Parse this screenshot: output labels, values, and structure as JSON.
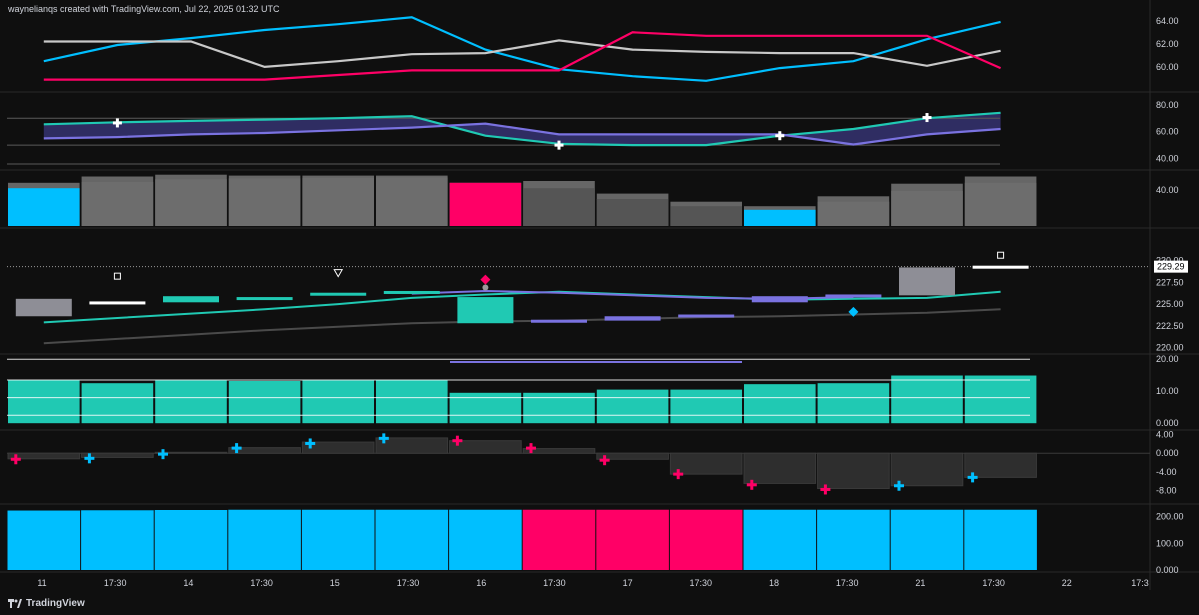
{
  "header": {
    "text": "waynelianqs created with TradingView.com, Jul 22, 2025 01:32 UTC"
  },
  "brand": {
    "text": "TradingView",
    "logo_icon": "tradingview-logo-icon"
  },
  "colors": {
    "cyan": "#00bfff",
    "magenta": "#ff0066",
    "teal": "#20c9b3",
    "purple": "#7a72e0",
    "grey": "#c8c8c8",
    "bar_grey": "#6d6d6d",
    "bg": "#0f0f0f"
  },
  "x_axis": {
    "labels": [
      "11",
      "17:30",
      "14",
      "17:30",
      "15",
      "17:30",
      "16",
      "17:30",
      "17",
      "17:30",
      "18",
      "17:30",
      "21",
      "17:30",
      "22",
      "17:3"
    ]
  },
  "chart_data": [
    {
      "type": "line",
      "panel": 1,
      "x": [
        0,
        1,
        2,
        3,
        4,
        5,
        6,
        7,
        8,
        9,
        10,
        11,
        12,
        13
      ],
      "ylim": [
        58,
        64.5
      ],
      "yticks": [
        "64.00",
        "62.00",
        "60.00"
      ],
      "series": [
        {
          "color": "#00bfff",
          "values": [
            60.5,
            61.9,
            62.5,
            63.2,
            63.7,
            64.3,
            61.5,
            59.8,
            59.2,
            58.8,
            59.9,
            60.5,
            62.4,
            63.9
          ]
        },
        {
          "color": "#c8c8c8",
          "values": [
            62.2,
            62.2,
            62.2,
            60.0,
            60.5,
            61.1,
            61.2,
            62.3,
            61.5,
            61.3,
            61.2,
            61.2,
            60.1,
            61.4
          ]
        },
        {
          "color": "#ff0066",
          "values": [
            58.9,
            58.9,
            58.9,
            58.9,
            59.3,
            59.7,
            59.7,
            59.7,
            63.0,
            62.7,
            62.7,
            62.7,
            62.7,
            59.9
          ]
        }
      ]
    },
    {
      "type": "line",
      "panel": 2,
      "x": [
        0,
        1,
        2,
        3,
        4,
        5,
        6,
        7,
        8,
        9,
        10,
        11,
        12,
        13
      ],
      "ylim": [
        33,
        88
      ],
      "yticks": [
        "80.00",
        "60.00",
        "40.00"
      ],
      "series": [
        {
          "color": "#20c9b3",
          "values": [
            65.5,
            67,
            68,
            69,
            70,
            71.5,
            57,
            51,
            50,
            50,
            57,
            62,
            70,
            74
          ]
        },
        {
          "color": "#7a72e0",
          "values": [
            55,
            56,
            58,
            59,
            61,
            63,
            66,
            58,
            58,
            58,
            58,
            50.5,
            58,
            62
          ]
        }
      ],
      "markers": [
        {
          "x": 1,
          "y": 66.5
        },
        {
          "x": 7,
          "y": 50
        },
        {
          "x": 10,
          "y": 57
        },
        {
          "x": 12,
          "y": 70.5
        }
      ]
    },
    {
      "type": "bar",
      "panel": 3,
      "x": [
        0,
        1,
        2,
        3,
        4,
        5,
        6,
        7,
        8,
        9,
        10,
        11,
        12,
        13
      ],
      "ylim": [
        0,
        60
      ],
      "yticks": [
        "40.00"
      ],
      "series": [
        {
          "values": [
            42,
            49,
            52,
            53,
            53.5,
            54,
            48,
            42,
            30,
            22,
            18,
            27,
            39,
            48
          ],
          "colors": [
            "#00bfff",
            "#6d6d6d",
            "#6d6d6d",
            "#6d6d6d",
            "#6d6d6d",
            "#6d6d6d",
            "#ff0066",
            "#555555",
            "#555555",
            "#555555",
            "#00bfff",
            "#6d6d6d",
            "#6d6d6d",
            "#6d6d6d"
          ]
        },
        {
          "values": [
            48,
            55,
            57,
            56,
            56,
            56,
            48,
            50,
            36,
            27,
            22,
            33,
            47,
            55
          ]
        }
      ]
    },
    {
      "type": "line",
      "panel": 4,
      "x": [
        0,
        1,
        2,
        3,
        4,
        5,
        6,
        7,
        8,
        9,
        10,
        11,
        12,
        13
      ],
      "ylim": [
        219.5,
        231.2
      ],
      "yticks": [
        "230.00",
        "227.50",
        "225.00",
        "222.50",
        "220.00"
      ],
      "last_price": "229.29",
      "series": [
        {
          "color": "#20c9b3",
          "values": [
            222.9,
            223.4,
            223.9,
            224.4,
            225.0,
            225.7,
            226.1,
            226.4,
            226.1,
            225.8,
            225.5,
            225.6,
            225.7,
            226.4
          ]
        },
        {
          "color": "#7a72e0",
          "values": [
            null,
            null,
            null,
            null,
            null,
            226.2,
            226.5,
            226.3,
            226.0,
            225.7,
            225.6,
            225.8,
            null,
            null
          ]
        },
        {
          "color": "#4a4a4a",
          "values": [
            220.5,
            221.0,
            221.5,
            222.0,
            222.4,
            222.8,
            223.0,
            223.1,
            223.3,
            223.5,
            223.6,
            223.8,
            224.0,
            224.4
          ]
        }
      ],
      "bodies": [
        {
          "x": 0,
          "o": 225.6,
          "c": 223.6,
          "color": "#8e8e96"
        },
        {
          "x": 1,
          "o": 225.3,
          "c": 225.1,
          "color": "#ffffff"
        },
        {
          "x": 2,
          "o": 225.9,
          "c": 225.2,
          "color": "#20c9b3"
        },
        {
          "x": 3,
          "o": 225.8,
          "c": 225.7,
          "color": "#20c9b3"
        },
        {
          "x": 4,
          "o": 226.3,
          "c": 226.1,
          "color": "#20c9b3"
        },
        {
          "x": 5,
          "o": 226.5,
          "c": 226.2,
          "color": "#20c9b3"
        },
        {
          "x": 6,
          "o": 225.8,
          "c": 222.8,
          "color": "#20c9b3"
        },
        {
          "x": 7,
          "o": 223.2,
          "c": 223.0,
          "color": "#7a72e0"
        },
        {
          "x": 8,
          "o": 223.6,
          "c": 223.1,
          "color": "#7a72e0"
        },
        {
          "x": 9,
          "o": 223.8,
          "c": 223.6,
          "color": "#7a72e0"
        },
        {
          "x": 10,
          "o": 225.9,
          "c": 225.2,
          "color": "#7a72e0"
        },
        {
          "x": 11,
          "o": 226.1,
          "c": 225.9,
          "color": "#7a72e0"
        },
        {
          "x": 12,
          "o": 229.2,
          "c": 226.0,
          "color": "#8e8e96"
        },
        {
          "x": 13,
          "o": 229.4,
          "c": 229.1,
          "color": "#ffffff"
        }
      ],
      "markers": [
        {
          "x": 1,
          "y": 228.2,
          "shape": "square",
          "color": "#ffffff"
        },
        {
          "x": 4,
          "y": 228.6,
          "shape": "triangle-down",
          "color": "#ffffff"
        },
        {
          "x": 6,
          "y": 227.8,
          "shape": "diamond",
          "color": "#ff0066"
        },
        {
          "x": 6,
          "y": 226.9,
          "shape": "circle",
          "color": "#9a9a9a"
        },
        {
          "x": 11,
          "y": 224.1,
          "shape": "diamond",
          "color": "#00bfff"
        },
        {
          "x": 13,
          "y": 230.6,
          "shape": "square",
          "color": "#ffffff"
        }
      ]
    },
    {
      "type": "bar",
      "panel": 5,
      "x": [
        0,
        1,
        2,
        3,
        4,
        5,
        6,
        7,
        8,
        9,
        10,
        11,
        12,
        13
      ],
      "ylim": [
        -1.5,
        21
      ],
      "yticks": [
        "20.00",
        "10.00",
        "0.000"
      ],
      "series": [
        {
          "color": "#20c9b3",
          "values": [
            13.5,
            12.5,
            13.4,
            13.2,
            13.4,
            13.5,
            9.5,
            9.5,
            10.5,
            10.5,
            12.2,
            12.5,
            14.9,
            14.9
          ]
        }
      ]
    },
    {
      "type": "bar",
      "panel": 6,
      "x": [
        0,
        1,
        2,
        3,
        4,
        5,
        6,
        7,
        8,
        9,
        10,
        11,
        12,
        13
      ],
      "ylim": [
        -10.5,
        5
      ],
      "yticks": [
        "4.00",
        "0.000",
        "-4.00",
        "-8.00"
      ],
      "series": [
        {
          "color": "#2e2e2e",
          "values": [
            -1.2,
            -0.9,
            0.2,
            1.2,
            2.4,
            3.3,
            2.7,
            1.0,
            -1.3,
            -4.5,
            -6.5,
            -7.6,
            -7.0,
            -5.2
          ]
        }
      ],
      "markers": [
        {
          "x": 0,
          "y": -1.3,
          "color": "#ff0066"
        },
        {
          "x": 1,
          "y": -1.1,
          "color": "#00bfff"
        },
        {
          "x": 2,
          "y": -0.2,
          "color": "#00bfff"
        },
        {
          "x": 3,
          "y": 1.1,
          "color": "#00bfff"
        },
        {
          "x": 4,
          "y": 2.1,
          "color": "#00bfff"
        },
        {
          "x": 5,
          "y": 3.2,
          "color": "#00bfff"
        },
        {
          "x": 6,
          "y": 2.7,
          "color": "#ff0066"
        },
        {
          "x": 7,
          "y": 1.1,
          "color": "#ff0066"
        },
        {
          "x": 8,
          "y": -1.5,
          "color": "#ff0066"
        },
        {
          "x": 9,
          "y": -4.5,
          "color": "#ff0066"
        },
        {
          "x": 10,
          "y": -6.8,
          "color": "#ff0066"
        },
        {
          "x": 11,
          "y": -7.8,
          "color": "#ff0066"
        },
        {
          "x": 12,
          "y": -7.0,
          "color": "#00bfff"
        },
        {
          "x": 13,
          "y": -5.2,
          "color": "#00bfff"
        }
      ]
    },
    {
      "type": "bar",
      "panel": 7,
      "x": [
        0,
        1,
        2,
        3,
        4,
        5,
        6,
        7,
        8,
        9,
        10,
        11,
        12,
        13
      ],
      "ylim": [
        0,
        240
      ],
      "yticks": [
        "200.00",
        "100.00",
        "0.000"
      ],
      "series": [
        {
          "values": [
            223,
            224,
            225,
            226,
            226,
            226,
            226,
            226,
            226,
            226,
            226,
            226,
            226,
            226
          ],
          "colors": [
            "#00bfff",
            "#00bfff",
            "#00bfff",
            "#00bfff",
            "#00bfff",
            "#00bfff",
            "#00bfff",
            "#ff0066",
            "#ff0066",
            "#ff0066",
            "#00bfff",
            "#00bfff",
            "#00bfff",
            "#00bfff"
          ]
        }
      ]
    }
  ]
}
